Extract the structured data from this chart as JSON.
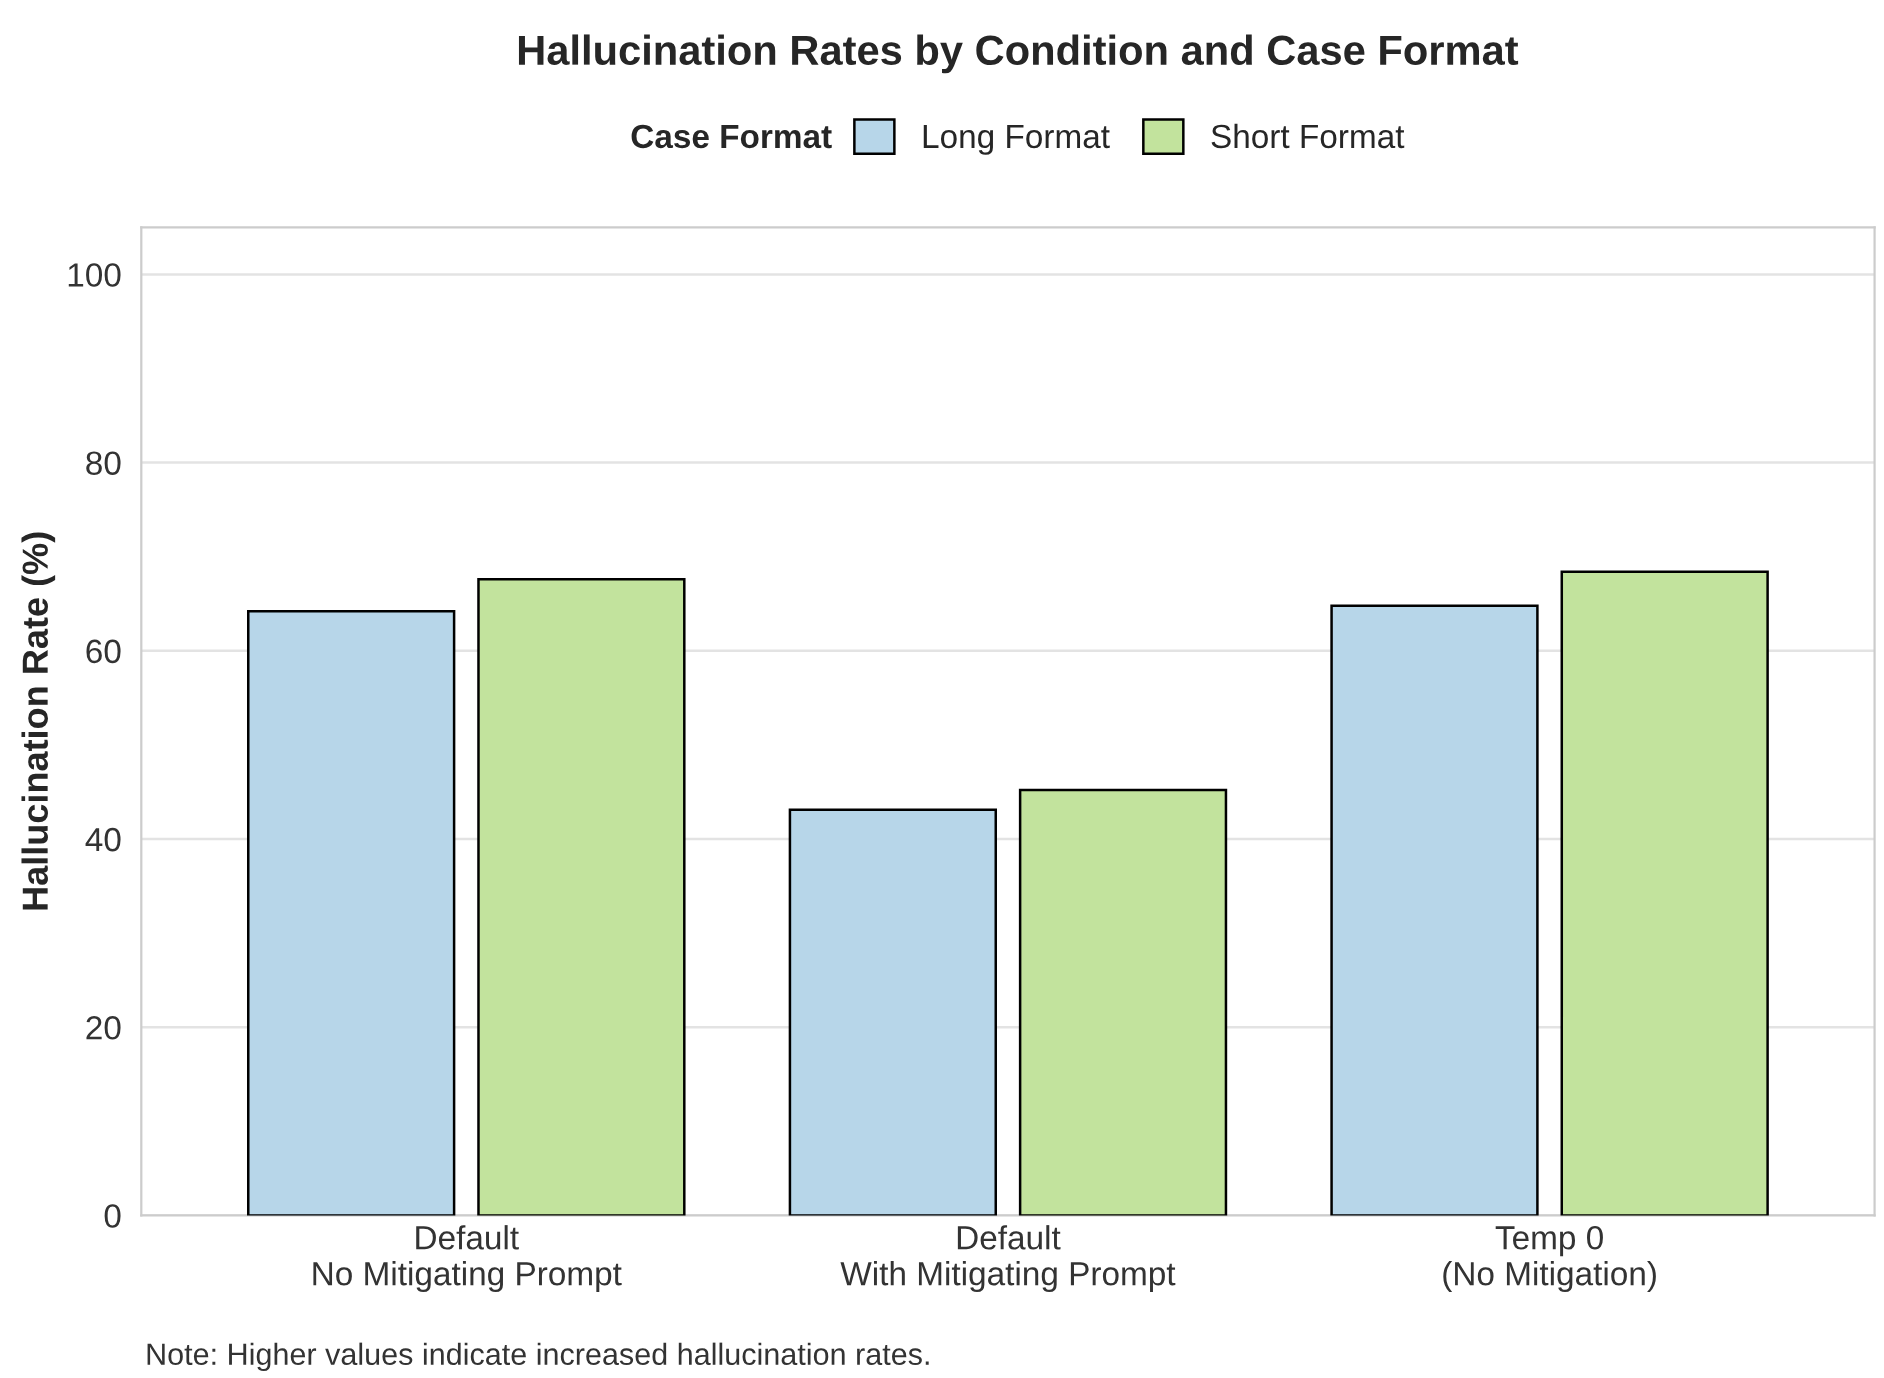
{
  "chart_data": {
    "type": "bar",
    "title": "Hallucination Rates by Condition and Case Format",
    "categories": [
      "Default\nNo Mitigating Prompt",
      "Default\nWith Mitigating Prompt",
      "Temp 0\n(No Mitigation)"
    ],
    "series": [
      {
        "name": "Long Format",
        "color": "#b7d6e9",
        "values": [
          64.2,
          43.1,
          64.8
        ]
      },
      {
        "name": "Short Format",
        "color": "#c2e39d",
        "values": [
          67.6,
          45.2,
          68.4
        ]
      }
    ],
    "ylabel": "Hallucination Rate (%)",
    "legend_title": "Case Format",
    "legend": "top",
    "ylim": [
      0,
      105
    ],
    "yticks": [
      0,
      20,
      40,
      60,
      80,
      100
    ],
    "grid": "y",
    "annotations": [
      "Note: Higher values indicate increased hallucination rates."
    ]
  }
}
